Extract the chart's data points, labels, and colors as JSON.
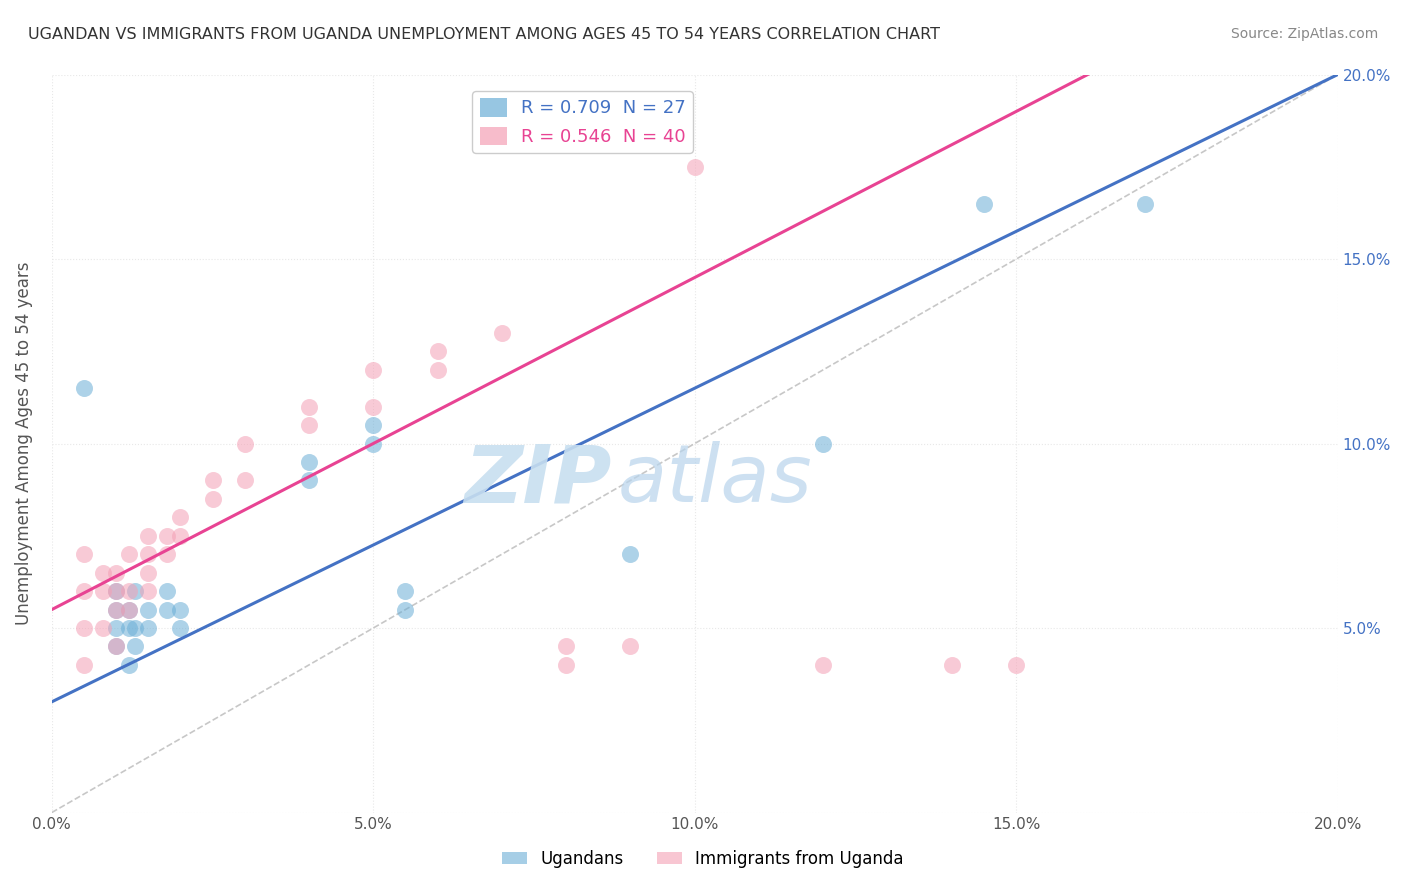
{
  "title": "UGANDAN VS IMMIGRANTS FROM UGANDA UNEMPLOYMENT AMONG AGES 45 TO 54 YEARS CORRELATION CHART",
  "source": "Source: ZipAtlas.com",
  "ylabel": "Unemployment Among Ages 45 to 54 years",
  "x_min": 0.0,
  "x_max": 0.2,
  "y_min": 0.0,
  "y_max": 0.2,
  "x_ticks": [
    0.0,
    0.05,
    0.1,
    0.15,
    0.2
  ],
  "y_ticks": [
    0.0,
    0.05,
    0.1,
    0.15,
    0.2
  ],
  "ugandans_color": "#6baed6",
  "immigrants_color": "#f4a0b5",
  "ugandans_line_color": "#4472c4",
  "immigrants_line_color": "#e84393",
  "right_tick_color": "#4472c4",
  "ugandans_R": 0.709,
  "ugandans_N": 27,
  "immigrants_R": 0.546,
  "immigrants_N": 40,
  "ugandans_scatter": [
    [
      0.005,
      0.115
    ],
    [
      0.01,
      0.045
    ],
    [
      0.01,
      0.05
    ],
    [
      0.01,
      0.055
    ],
    [
      0.01,
      0.06
    ],
    [
      0.012,
      0.04
    ],
    [
      0.012,
      0.05
    ],
    [
      0.012,
      0.055
    ],
    [
      0.013,
      0.045
    ],
    [
      0.013,
      0.05
    ],
    [
      0.013,
      0.06
    ],
    [
      0.015,
      0.05
    ],
    [
      0.015,
      0.055
    ],
    [
      0.018,
      0.055
    ],
    [
      0.018,
      0.06
    ],
    [
      0.02,
      0.05
    ],
    [
      0.02,
      0.055
    ],
    [
      0.04,
      0.09
    ],
    [
      0.04,
      0.095
    ],
    [
      0.05,
      0.1
    ],
    [
      0.05,
      0.105
    ],
    [
      0.055,
      0.055
    ],
    [
      0.055,
      0.06
    ],
    [
      0.09,
      0.07
    ],
    [
      0.12,
      0.1
    ],
    [
      0.145,
      0.165
    ],
    [
      0.17,
      0.165
    ]
  ],
  "immigrants_scatter": [
    [
      0.005,
      0.04
    ],
    [
      0.005,
      0.05
    ],
    [
      0.005,
      0.06
    ],
    [
      0.005,
      0.07
    ],
    [
      0.008,
      0.05
    ],
    [
      0.008,
      0.06
    ],
    [
      0.008,
      0.065
    ],
    [
      0.01,
      0.045
    ],
    [
      0.01,
      0.055
    ],
    [
      0.01,
      0.06
    ],
    [
      0.01,
      0.065
    ],
    [
      0.012,
      0.055
    ],
    [
      0.012,
      0.06
    ],
    [
      0.012,
      0.07
    ],
    [
      0.015,
      0.06
    ],
    [
      0.015,
      0.065
    ],
    [
      0.015,
      0.07
    ],
    [
      0.015,
      0.075
    ],
    [
      0.018,
      0.07
    ],
    [
      0.018,
      0.075
    ],
    [
      0.02,
      0.075
    ],
    [
      0.02,
      0.08
    ],
    [
      0.025,
      0.085
    ],
    [
      0.025,
      0.09
    ],
    [
      0.03,
      0.09
    ],
    [
      0.03,
      0.1
    ],
    [
      0.04,
      0.105
    ],
    [
      0.04,
      0.11
    ],
    [
      0.05,
      0.11
    ],
    [
      0.05,
      0.12
    ],
    [
      0.06,
      0.12
    ],
    [
      0.06,
      0.125
    ],
    [
      0.07,
      0.13
    ],
    [
      0.08,
      0.04
    ],
    [
      0.08,
      0.045
    ],
    [
      0.09,
      0.045
    ],
    [
      0.1,
      0.175
    ],
    [
      0.12,
      0.04
    ],
    [
      0.14,
      0.04
    ],
    [
      0.15,
      0.04
    ]
  ],
  "watermark_zip": "ZIP",
  "watermark_atlas": "atlas",
  "background_color": "#ffffff",
  "grid_color": "#e8e8e8",
  "legend_text_ug_color": "#4472c4",
  "legend_text_im_color": "#e84393"
}
